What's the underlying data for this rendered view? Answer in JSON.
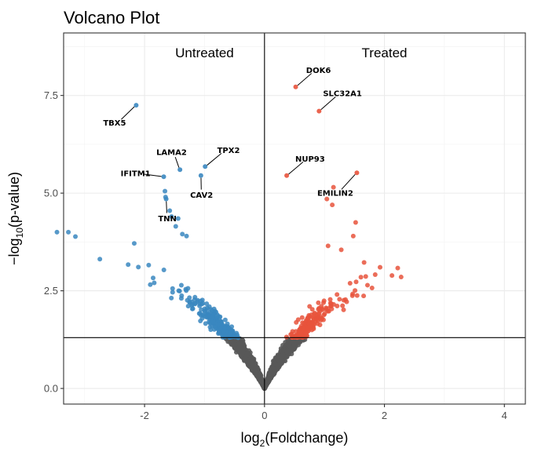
{
  "chart_data": {
    "type": "scatter",
    "title": "Volcano Plot",
    "xlabel": {
      "prefix": "log",
      "sub": "2",
      "suffix": "(Foldchange)"
    },
    "ylabel": {
      "prefix": "−log",
      "sub": "10",
      "suffix": "(p-value)"
    },
    "xlim": [
      -3.35,
      4.35
    ],
    "ylim": [
      -0.4,
      9.1
    ],
    "xticks": [
      {
        "value": -2,
        "label": "-2"
      },
      {
        "value": 0,
        "label": "0"
      },
      {
        "value": 2,
        "label": "2"
      },
      {
        "value": 4,
        "label": "4"
      }
    ],
    "yticks": [
      {
        "value": 0,
        "label": "0.0"
      },
      {
        "value": 2.5,
        "label": "2.5"
      },
      {
        "value": 5,
        "label": "5.0"
      },
      {
        "value": 7.5,
        "label": "7.5"
      }
    ],
    "grid": true,
    "vline_x": 0,
    "hline_y": 1.3,
    "regions": [
      {
        "label": "Untreated",
        "x": -1,
        "y": 8.6
      },
      {
        "label": "Treated",
        "x": 2,
        "y": 8.6
      }
    ],
    "colors": {
      "down": "#3a87c0",
      "up": "#e8533c",
      "ns": "#595959"
    },
    "highlighted_points": [
      {
        "gene": "TBX5",
        "x": -2.14,
        "y": 7.25,
        "group": "down"
      },
      {
        "gene": "LAMA2",
        "x": -1.41,
        "y": 5.6,
        "group": "down"
      },
      {
        "gene": "TPX2",
        "x": -0.99,
        "y": 5.68,
        "group": "down"
      },
      {
        "gene": "IFITM1",
        "x": -1.68,
        "y": 5.42,
        "group": "down"
      },
      {
        "gene": "CAV2",
        "x": -1.06,
        "y": 5.45,
        "group": "down"
      },
      {
        "gene": "TNN",
        "x": -1.64,
        "y": 4.85,
        "group": "down"
      },
      {
        "gene": "DOK6",
        "x": 0.52,
        "y": 7.72,
        "group": "up"
      },
      {
        "gene": "SLC32A1",
        "x": 0.91,
        "y": 7.1,
        "group": "up"
      },
      {
        "gene": "NUP93",
        "x": 0.37,
        "y": 5.45,
        "group": "up"
      },
      {
        "gene": "EMILIN2",
        "x": 1.54,
        "y": 5.52,
        "group": "up"
      }
    ],
    "gene_labels": [
      {
        "gene": "TBX5",
        "label_x": -2.5,
        "label_y": 6.8
      },
      {
        "gene": "LAMA2",
        "label_x": -1.55,
        "label_y": 6.05
      },
      {
        "gene": "TPX2",
        "label_x": -0.6,
        "label_y": 6.1
      },
      {
        "gene": "IFITM1",
        "label_x": -2.15,
        "label_y": 5.5
      },
      {
        "gene": "CAV2",
        "label_x": -1.05,
        "label_y": 4.95
      },
      {
        "gene": "TNN",
        "label_x": -1.62,
        "label_y": 4.35
      },
      {
        "gene": "DOK6",
        "label_x": 0.9,
        "label_y": 8.15
      },
      {
        "gene": "SLC32A1",
        "label_x": 1.3,
        "label_y": 7.55
      },
      {
        "gene": "NUP93",
        "label_x": 0.76,
        "label_y": 5.88
      },
      {
        "gene": "EMILIN2",
        "label_x": 1.18,
        "label_y": 5.0
      }
    ],
    "extra_points": [
      {
        "x": -1.66,
        "y": 5.05,
        "group": "down"
      },
      {
        "x": -1.65,
        "y": 4.9,
        "group": "down"
      },
      {
        "x": -1.58,
        "y": 4.55,
        "group": "down"
      },
      {
        "x": -1.55,
        "y": 4.4,
        "group": "down"
      },
      {
        "x": -1.44,
        "y": 4.35,
        "group": "down"
      },
      {
        "x": -1.37,
        "y": 3.95,
        "group": "down"
      },
      {
        "x": -1.3,
        "y": 3.9,
        "group": "down"
      },
      {
        "x": -1.48,
        "y": 4.15,
        "group": "down"
      },
      {
        "x": 1.04,
        "y": 4.85,
        "group": "up"
      },
      {
        "x": 1.13,
        "y": 4.7,
        "group": "up"
      },
      {
        "x": 1.52,
        "y": 4.25,
        "group": "up"
      },
      {
        "x": 1.48,
        "y": 3.9,
        "group": "up"
      },
      {
        "x": 1.15,
        "y": 5.15,
        "group": "up"
      },
      {
        "x": 1.06,
        "y": 3.65,
        "group": "up"
      },
      {
        "x": 1.28,
        "y": 3.55,
        "group": "up"
      }
    ],
    "generated_cloud": {
      "n_points": 9000,
      "description_shape": "v-shaped cloud: |log2FC| roughly proportional to -log10(p)"
    }
  }
}
